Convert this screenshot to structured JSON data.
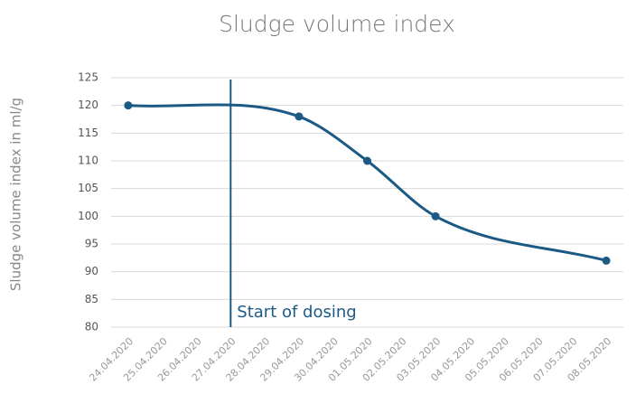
{
  "chart_data": {
    "type": "line",
    "title": "Sludge volume index",
    "y_label": "Sludge volume index in ml/g",
    "categories": [
      "24.04.2020",
      "25.04.2020",
      "26.04.2020",
      "27.04.2020",
      "28.04.2020",
      "29.04.2020",
      "30.04.2020",
      "01.05.2020",
      "02.05.2020",
      "03.05.2020",
      "04.05.2020",
      "05.05.2020",
      "06.05.2020",
      "07.05.2020",
      "08.05.2020"
    ],
    "series": [
      {
        "name": "Sludge volume index",
        "color": "#1c5a86",
        "x": [
          "24.04.2020",
          "29.04.2020",
          "01.05.2020",
          "03.05.2020",
          "08.05.2020"
        ],
        "values": [
          120,
          118,
          110,
          100,
          92
        ]
      }
    ],
    "ylim": [
      80,
      125
    ],
    "yticks": [
      80,
      85,
      90,
      95,
      100,
      105,
      110,
      115,
      120,
      125
    ],
    "grid": true,
    "annotation": {
      "text": "Start of dosing",
      "x": "27.04.2020"
    }
  }
}
